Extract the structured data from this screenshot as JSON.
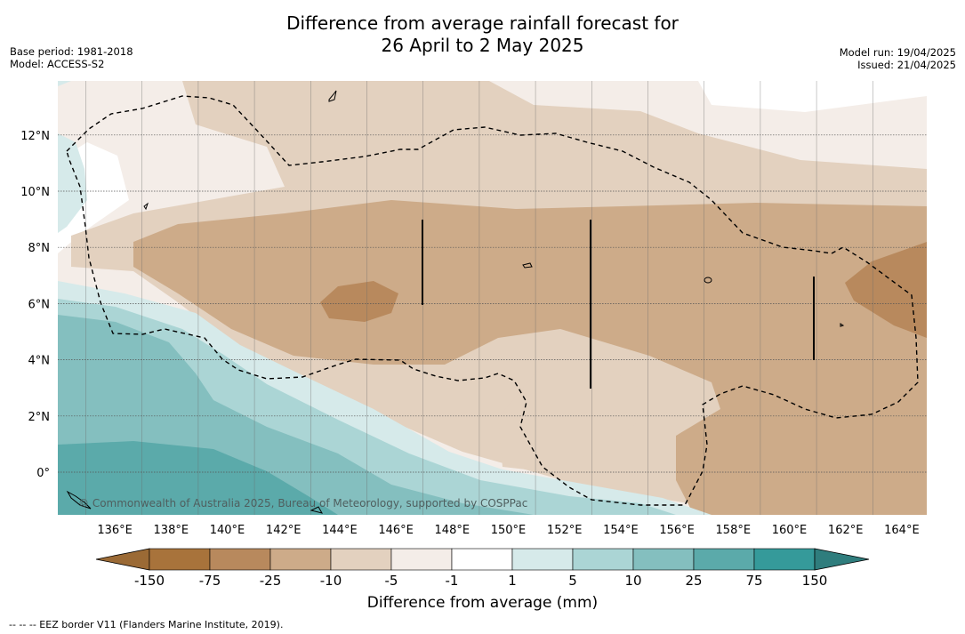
{
  "title": {
    "line1": "Difference from average rainfall forecast for",
    "line2": "26 April to 2 May 2025"
  },
  "meta_left": {
    "base_period": "Base period: 1981-2018",
    "model": "Model: ACCESS-S2"
  },
  "meta_right": {
    "model_run": "Model run: 19/04/2025",
    "issued": "Issued: 21/04/2025"
  },
  "map": {
    "lon_labels": [
      "136°E",
      "138°E",
      "140°E",
      "142°E",
      "144°E",
      "146°E",
      "148°E",
      "150°E",
      "152°E",
      "154°E",
      "156°E",
      "158°E",
      "160°E",
      "162°E",
      "164°E"
    ],
    "lat_labels": [
      "12°N",
      "10°N",
      "8°N",
      "6°N",
      "4°N",
      "2°N",
      "0°"
    ],
    "lon_range": [
      135,
      166
    ],
    "lat_range": [
      -1.5,
      14
    ],
    "copyright": "© Commonwealth of Australia 2025, Bureau of Meteorology, supported by COSPPac"
  },
  "colorbar": {
    "title": "Difference from average (mm)",
    "tick_labels": [
      "-150",
      "-75",
      "-25",
      "-10",
      "-5",
      "-1",
      "1",
      "5",
      "10",
      "25",
      "75",
      "150"
    ],
    "colors": [
      "#a8733b",
      "#b8895d",
      "#cdab89",
      "#e3d1bf",
      "#f4ede8",
      "#ffffff",
      "#d6eaea",
      "#abd5d5",
      "#84bfbf",
      "#5baaaa",
      "#359a9a"
    ],
    "extend_low_color": "#9b6a35",
    "extend_high_color": "#2f7d7d"
  },
  "footnote": "--  --  -- EEZ border V11 (Flanders Marine Institute, 2019)."
}
